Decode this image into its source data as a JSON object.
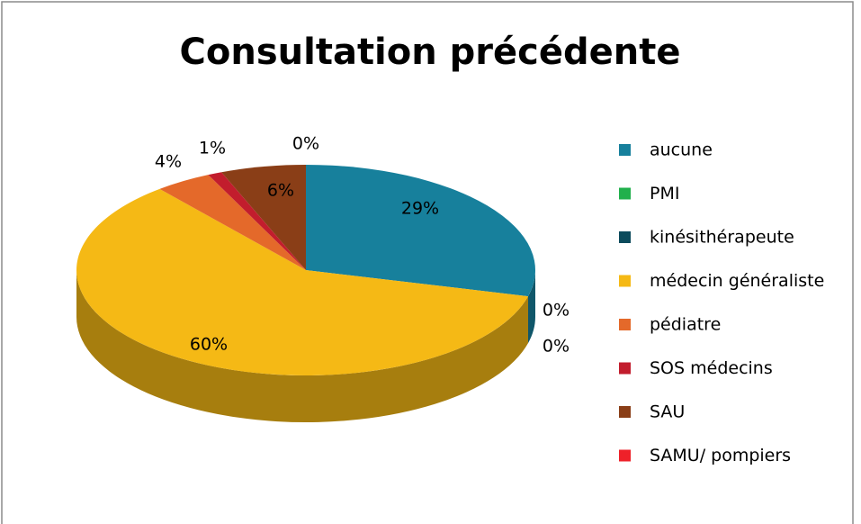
{
  "chart_data": {
    "type": "pie",
    "title": "Consultation précédente",
    "categories": [
      "aucune",
      "PMI",
      "kinésithérapeute",
      "médecin généraliste",
      "pédiatre",
      "SOS médecins",
      "SAU",
      "SAMU/ pompiers"
    ],
    "values": [
      29,
      0,
      0,
      60,
      4,
      1,
      6,
      0
    ],
    "value_labels": [
      "29%",
      "0%",
      "0%",
      "60%",
      "4%",
      "1%",
      "6%",
      "0%"
    ],
    "colors": [
      "#17809c",
      "#21b04c",
      "#0c4b5c",
      "#f5b915",
      "#e4692a",
      "#c21d2d",
      "#8a3e17",
      "#ee2129"
    ],
    "legend": "right"
  }
}
